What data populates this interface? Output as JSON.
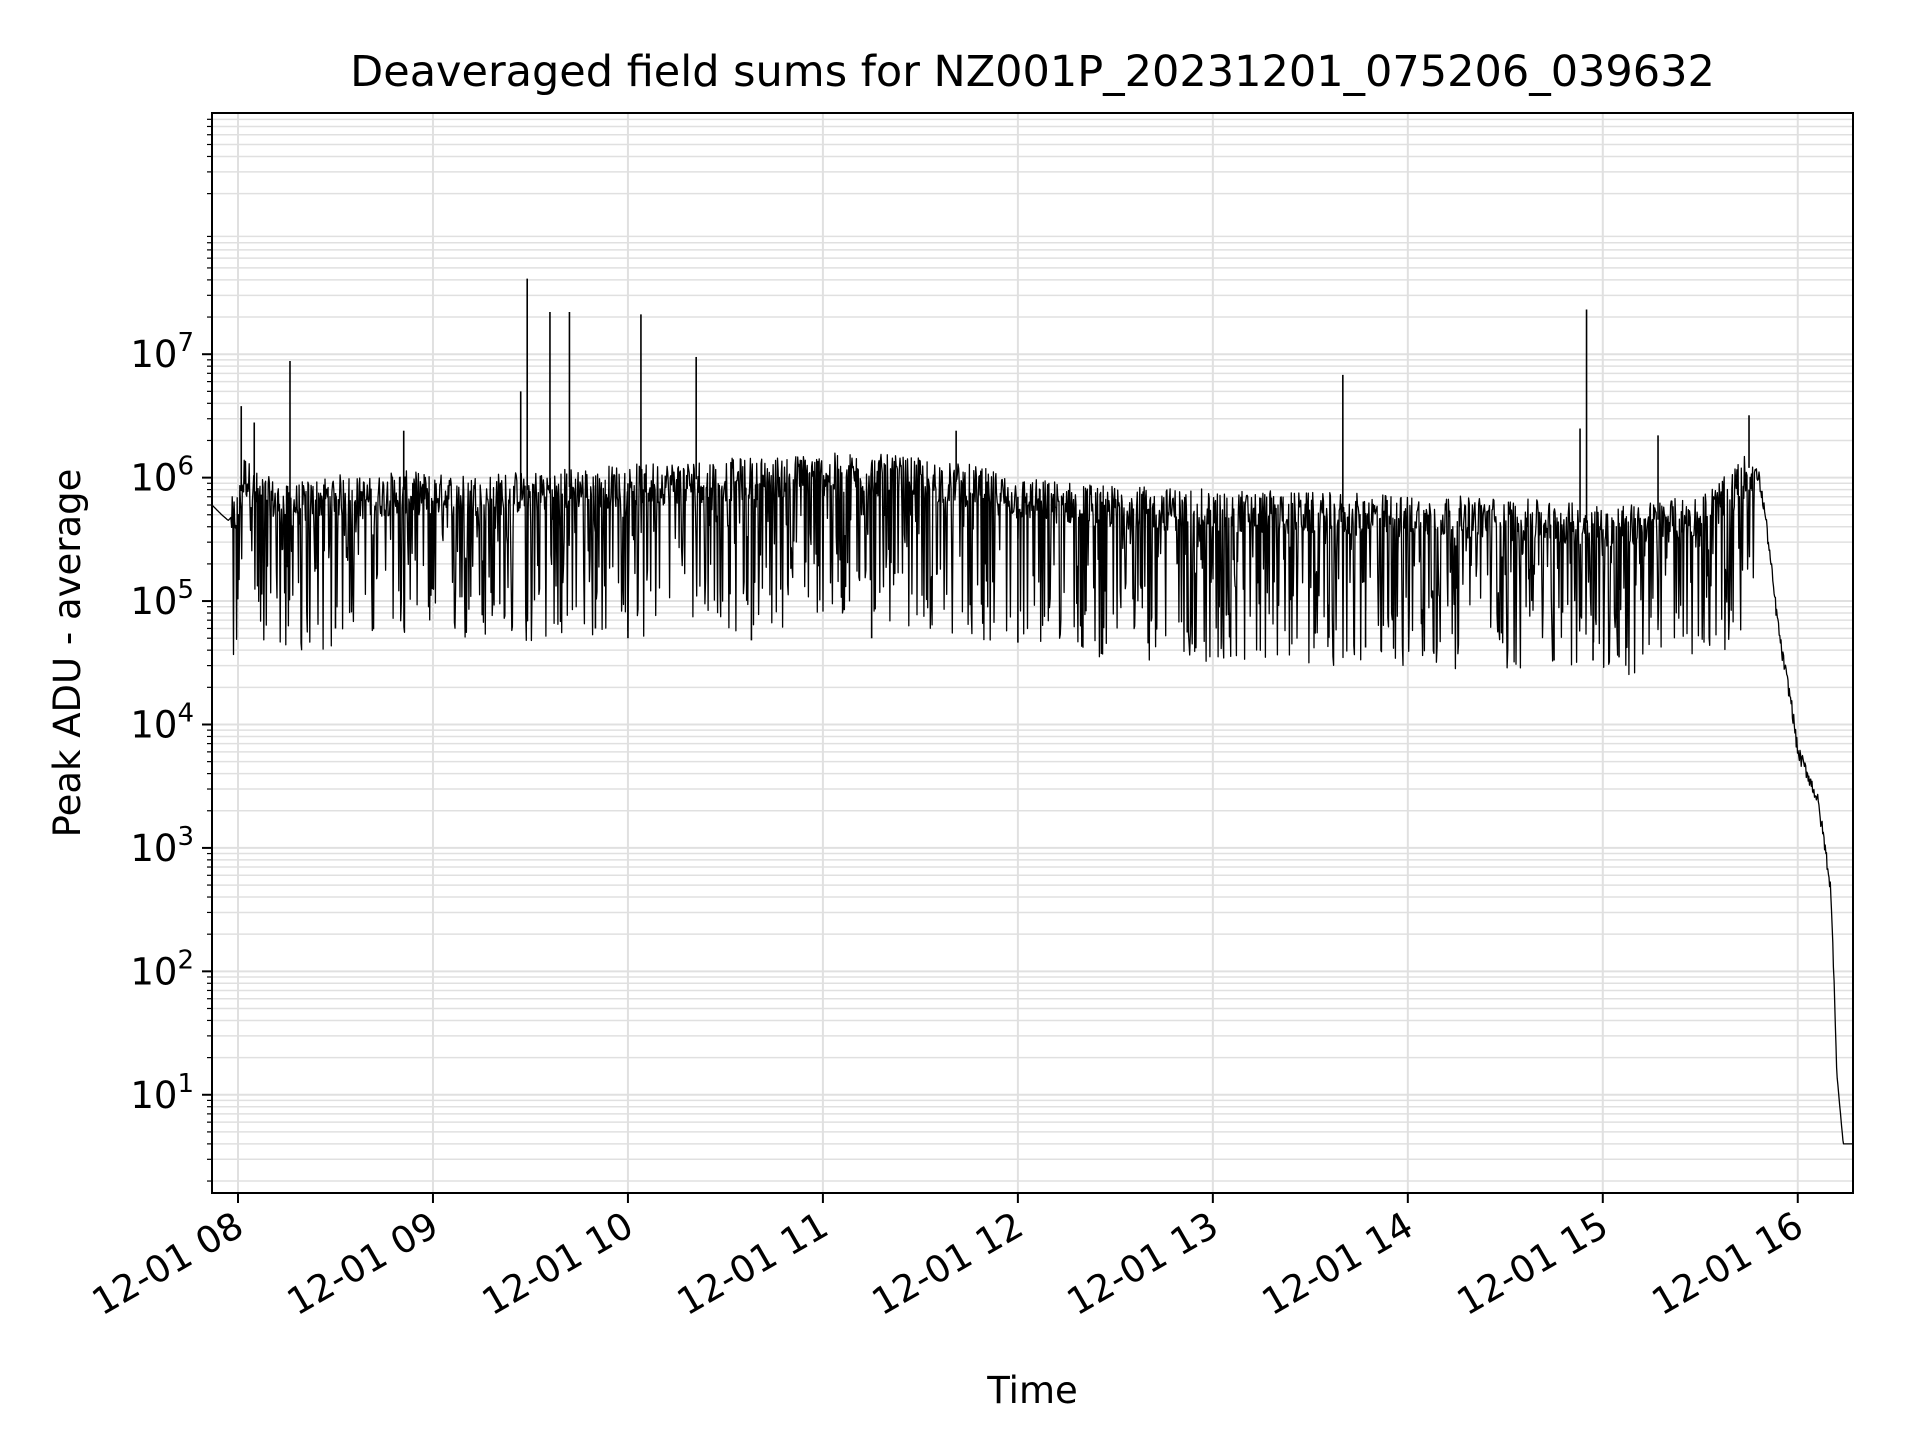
{
  "chart_data": {
    "type": "line",
    "title": "Deaveraged field sums for NZ001P_20231201_075206_039632",
    "xlabel": "Time",
    "ylabel": "Peak ADU - average",
    "y_scale": "log",
    "ylim": [
      1.6,
      900000000
    ],
    "xlim": [
      "2023-12-01 07:52",
      "2023-12-01 16:17"
    ],
    "grid": true,
    "line_color": "#000000",
    "grid_color": "#e0e0e0",
    "x_ticks": [
      {
        "value": "2023-12-01 08:00",
        "label": "12-01 08"
      },
      {
        "value": "2023-12-01 09:00",
        "label": "12-01 09"
      },
      {
        "value": "2023-12-01 10:00",
        "label": "12-01 10"
      },
      {
        "value": "2023-12-01 11:00",
        "label": "12-01 11"
      },
      {
        "value": "2023-12-01 12:00",
        "label": "12-01 12"
      },
      {
        "value": "2023-12-01 13:00",
        "label": "12-01 13"
      },
      {
        "value": "2023-12-01 14:00",
        "label": "12-01 14"
      },
      {
        "value": "2023-12-01 15:00",
        "label": "12-01 15"
      },
      {
        "value": "2023-12-01 16:00",
        "label": "12-01 16"
      }
    ],
    "y_ticks": [
      {
        "value": 10,
        "base": "10",
        "exp": "1"
      },
      {
        "value": 100,
        "base": "10",
        "exp": "2"
      },
      {
        "value": 1000,
        "base": "10",
        "exp": "3"
      },
      {
        "value": 10000,
        "base": "10",
        "exp": "4"
      },
      {
        "value": 100000,
        "base": "10",
        "exp": "5"
      },
      {
        "value": 1000000,
        "base": "10",
        "exp": "6"
      },
      {
        "value": 10000000,
        "base": "10",
        "exp": "7"
      }
    ],
    "series": [
      {
        "x": [
          "2023-12-01 07:52",
          "2023-12-01 07:55",
          "2023-12-01 07:57",
          "2023-12-01 08:00",
          "2023-12-01 08:02",
          "2023-12-01 08:05",
          "2023-12-01 08:10",
          "2023-12-01 08:15",
          "2023-12-01 08:20",
          "2023-12-01 08:25",
          "2023-12-01 08:30",
          "2023-12-01 08:40",
          "2023-12-01 08:50",
          "2023-12-01 09:00",
          "2023-12-01 09:15",
          "2023-12-01 09:30",
          "2023-12-01 09:45",
          "2023-12-01 10:00",
          "2023-12-01 10:15",
          "2023-12-01 10:30",
          "2023-12-01 10:45",
          "2023-12-01 11:00",
          "2023-12-01 11:15",
          "2023-12-01 11:30",
          "2023-12-01 11:45",
          "2023-12-01 12:00",
          "2023-12-01 12:15",
          "2023-12-01 12:30",
          "2023-12-01 12:45",
          "2023-12-01 13:00",
          "2023-12-01 13:15",
          "2023-12-01 13:30",
          "2023-12-01 13:45",
          "2023-12-01 14:00",
          "2023-12-01 14:15",
          "2023-12-01 14:30",
          "2023-12-01 14:45",
          "2023-12-01 15:00",
          "2023-12-01 15:15",
          "2023-12-01 15:30",
          "2023-12-01 15:40",
          "2023-12-01 15:45",
          "2023-12-01 15:48",
          "2023-12-01 15:50",
          "2023-12-01 15:53",
          "2023-12-01 15:55",
          "2023-12-01 15:58",
          "2023-12-01 16:00",
          "2023-12-01 16:03",
          "2023-12-01 16:06",
          "2023-12-01 16:08",
          "2023-12-01 16:10",
          "2023-12-01 16:11",
          "2023-12-01 16:12",
          "2023-12-01 16:14",
          "2023-12-01 16:17"
        ],
        "y": [
          600000,
          500000,
          450000,
          550000,
          1100000,
          800000,
          700000,
          600000,
          650000,
          700000,
          750000,
          700000,
          800000,
          750000,
          750000,
          800000,
          850000,
          900000,
          950000,
          1000000,
          1050000,
          1100000,
          1100000,
          1000000,
          900000,
          700000,
          650000,
          600000,
          580000,
          560000,
          550000,
          530000,
          520000,
          500000,
          500000,
          480000,
          450000,
          420000,
          450000,
          500000,
          800000,
          1200000,
          1000000,
          500000,
          100000,
          40000,
          15000,
          6000,
          4000,
          2500,
          1200,
          500,
          120,
          15,
          4,
          4
        ]
      }
    ],
    "spikes": [
      {
        "x": "2023-12-01 08:01",
        "y": 3800000
      },
      {
        "x": "2023-12-01 08:05",
        "y": 2800000
      },
      {
        "x": "2023-12-01 08:16",
        "y": 8800000
      },
      {
        "x": "2023-12-01 08:51",
        "y": 2400000
      },
      {
        "x": "2023-12-01 09:27",
        "y": 5000000
      },
      {
        "x": "2023-12-01 09:29",
        "y": 41000000
      },
      {
        "x": "2023-12-01 09:36",
        "y": 22000000
      },
      {
        "x": "2023-12-01 09:42",
        "y": 22000000
      },
      {
        "x": "2023-12-01 10:04",
        "y": 21000000
      },
      {
        "x": "2023-12-01 10:21",
        "y": 9500000
      },
      {
        "x": "2023-12-01 11:41",
        "y": 2400000
      },
      {
        "x": "2023-12-01 13:40",
        "y": 6800000
      },
      {
        "x": "2023-12-01 14:53",
        "y": 2500000
      },
      {
        "x": "2023-12-01 14:55",
        "y": 23000000
      },
      {
        "x": "2023-12-01 15:17",
        "y": 2200000
      },
      {
        "x": "2023-12-01 15:45",
        "y": 3200000
      }
    ],
    "dips": [
      {
        "x": "2023-12-01 08:30",
        "y": 60000
      },
      {
        "x": "2023-12-01 09:50",
        "y": 60000
      },
      {
        "x": "2023-12-01 10:00",
        "y": 50000
      },
      {
        "x": "2023-12-01 10:38",
        "y": 48000
      },
      {
        "x": "2023-12-01 11:15",
        "y": 50000
      },
      {
        "x": "2023-12-01 12:00",
        "y": 46000
      },
      {
        "x": "2023-12-01 13:47",
        "y": 42000
      },
      {
        "x": "2023-12-01 14:45",
        "y": 33000
      },
      {
        "x": "2023-12-01 14:57",
        "y": 33000
      },
      {
        "x": "2023-12-01 15:05",
        "y": 35000
      }
    ]
  }
}
